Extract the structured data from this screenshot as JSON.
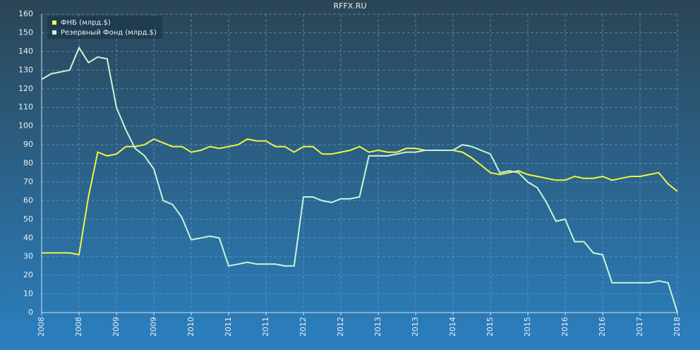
{
  "chart_data": {
    "type": "line",
    "title": "RFFX.RU",
    "categories": [
      "2008",
      null,
      null,
      null,
      "2008",
      null,
      null,
      null,
      "2009",
      null,
      null,
      null,
      "2009",
      null,
      null,
      null,
      "2010",
      null,
      null,
      null,
      "2011",
      null,
      null,
      null,
      "2011",
      null,
      null,
      null,
      "2012",
      null,
      null,
      null,
      "2012",
      null,
      null,
      null,
      "2013",
      null,
      null,
      null,
      "2013",
      null,
      null,
      null,
      "2014",
      null,
      null,
      null,
      "2015",
      null,
      null,
      null,
      "2015",
      null,
      null,
      null,
      "2016",
      null,
      null,
      null,
      "2016",
      null,
      null,
      null,
      "2017",
      null,
      null,
      null,
      "2018"
    ],
    "series": [
      {
        "name": "ФНБ (млрд.$)",
        "color": "#f2f542",
        "values": [
          32,
          32,
          32,
          32,
          31,
          62,
          86,
          84,
          85,
          89,
          89,
          90,
          93,
          91,
          89,
          89,
          86,
          87,
          89,
          88,
          89,
          90,
          93,
          92,
          92,
          89,
          89,
          86,
          89,
          89,
          85,
          85,
          86,
          87,
          89,
          86,
          87,
          86,
          86,
          88,
          88,
          87,
          87,
          87,
          87,
          86,
          83,
          79,
          75,
          74,
          75,
          76,
          74,
          73,
          72,
          71,
          71,
          73,
          72,
          72,
          73,
          71,
          72,
          73,
          73,
          74,
          75,
          69,
          65
        ]
      },
      {
        "name": "Резервный Фонд (млрд.$)",
        "color": "#c8f5d8",
        "values": [
          125,
          128,
          129,
          130,
          142,
          134,
          137,
          136,
          110,
          98,
          88,
          84,
          77,
          60,
          58,
          51,
          39,
          40,
          41,
          40,
          25,
          26,
          27,
          26,
          26,
          26,
          25,
          25,
          62,
          62,
          60,
          59,
          61,
          61,
          62,
          84,
          84,
          84,
          85,
          86,
          86,
          87,
          87,
          87,
          87,
          90,
          89,
          87,
          85,
          75,
          76,
          75,
          70,
          67,
          59,
          49,
          50,
          38,
          38,
          32,
          31,
          16,
          16,
          16,
          16,
          16,
          17,
          16,
          0
        ]
      }
    ],
    "ylim": [
      0,
      160
    ],
    "yticks": [
      0,
      10,
      20,
      30,
      40,
      50,
      60,
      70,
      80,
      90,
      100,
      110,
      120,
      130,
      140,
      150,
      160
    ],
    "grid": true,
    "legend": "top-left"
  }
}
